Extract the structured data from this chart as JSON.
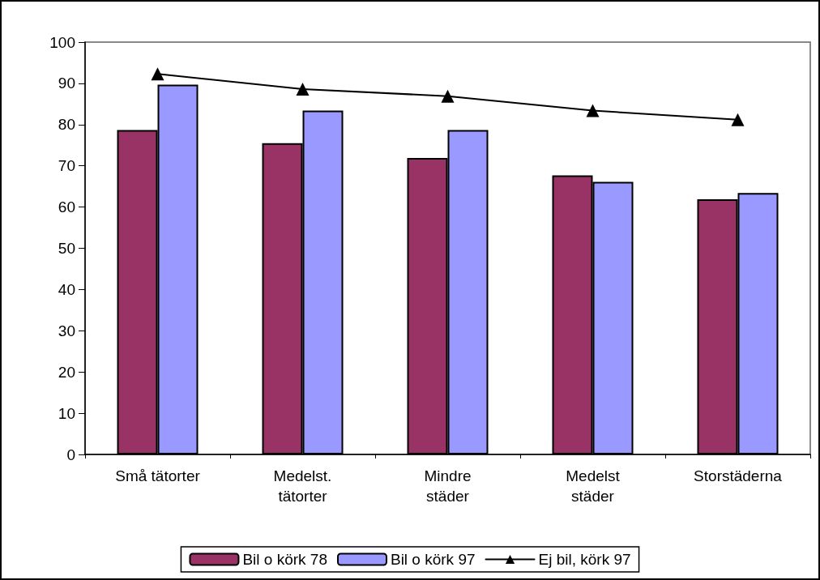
{
  "chart_data": {
    "type": "bar",
    "categories": [
      "Små tätorter",
      "Medelst.\ntätorter",
      "Mindre\nstäder",
      "Medelst\nstäder",
      "Storstäderna"
    ],
    "series": [
      {
        "name": "Bil o körk 78",
        "color": "#993366",
        "values": [
          78.7,
          75.5,
          71.9,
          67.7,
          61.9
        ]
      },
      {
        "name": "Bil o körk 97",
        "color": "#9999ff",
        "values": [
          89.7,
          83.4,
          78.7,
          66.1,
          63.4
        ]
      },
      {
        "name": "Ej bil, körk 97",
        "type": "line",
        "color": "#000000",
        "marker": "triangle",
        "values": [
          92.3,
          88.6,
          86.9,
          83.4,
          81.2
        ]
      }
    ],
    "ylim": [
      0,
      100
    ],
    "yticks": [
      0,
      10,
      20,
      30,
      40,
      50,
      60,
      70,
      80,
      90,
      100
    ],
    "grid": false,
    "legend": "bottom"
  }
}
